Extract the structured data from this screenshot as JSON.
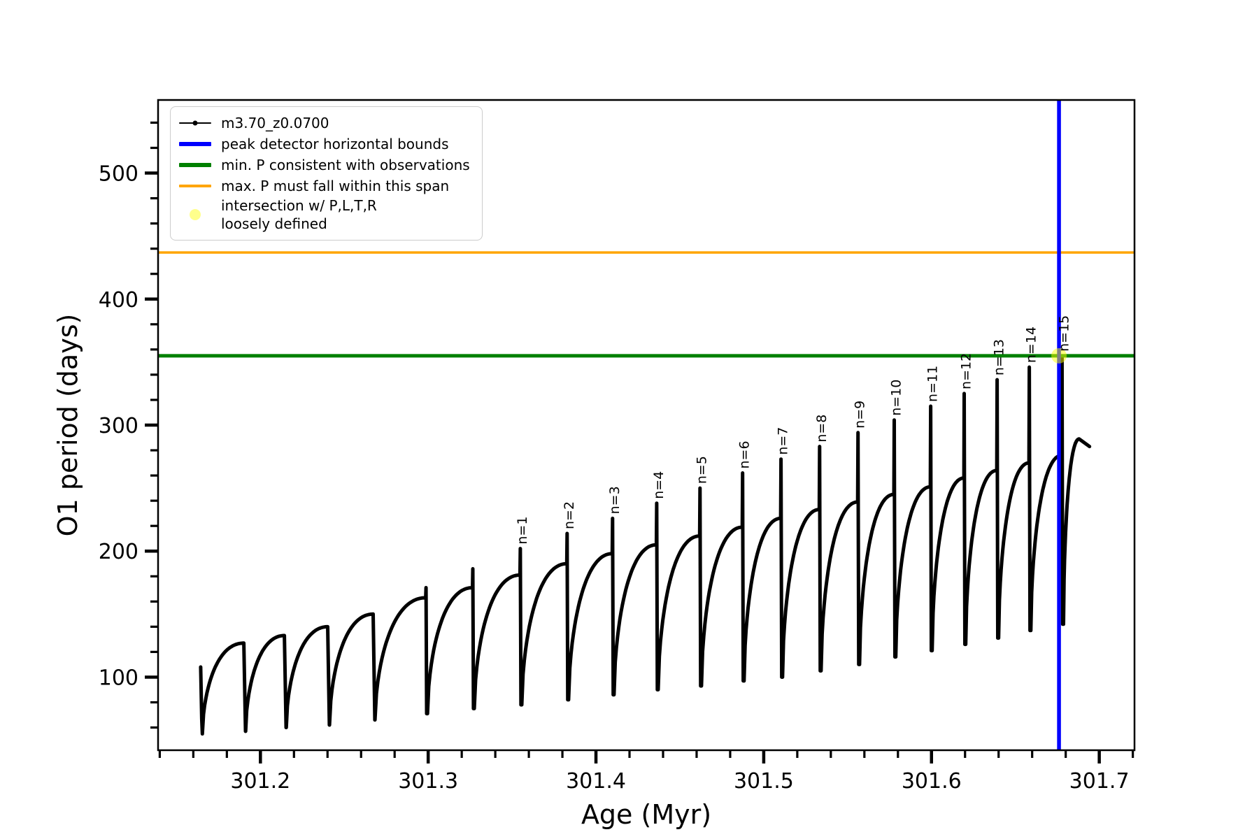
{
  "colors": {
    "series": "#000000",
    "peak_bounds": "#0000ff",
    "min_p": "#008000",
    "max_p": "#ffa500",
    "intersection": "#ffff00",
    "axis": "#000000"
  },
  "legend": {
    "items": [
      {
        "type": "line-marker",
        "color": "#000000",
        "label": "m3.70_z0.0700"
      },
      {
        "type": "line-thick",
        "color": "#0000ff",
        "label": "peak detector horizontal bounds"
      },
      {
        "type": "line-thick",
        "color": "#008000",
        "label": "min. P consistent with observations"
      },
      {
        "type": "line-med",
        "color": "#ffa500",
        "label": "max. P must fall within this span"
      },
      {
        "type": "marker",
        "color": "#ffff00",
        "label": "intersection w/ P,L,T,R\nloosely defined"
      }
    ]
  },
  "chart_data": {
    "type": "line",
    "title": "",
    "xlabel": "Age (Myr)",
    "ylabel": "O1 period (days)",
    "xlim": [
      301.139,
      301.721
    ],
    "ylim": [
      42,
      558
    ],
    "xticks": [
      301.2,
      301.3,
      301.4,
      301.5,
      301.6,
      301.7
    ],
    "xtick_labels": [
      "301.2",
      "301.3",
      "301.4",
      "301.5",
      "301.6",
      "301.7"
    ],
    "x_minor_step": 0.02,
    "yticks": [
      100,
      200,
      300,
      400,
      500
    ],
    "ytick_labels": [
      "100",
      "200",
      "300",
      "400",
      "500"
    ],
    "y_minor_step": 20,
    "grid": false,
    "legend_position": "upper-left",
    "series_label": "m3.70_z0.0700",
    "start_point": {
      "age": 301.165,
      "P": 108
    },
    "cycles": [
      {
        "start": 301.165,
        "end": 301.1908,
        "min": 55,
        "shoulder": 127,
        "needle": null,
        "label": null
      },
      {
        "start": 301.1908,
        "end": 301.215,
        "min": 57,
        "shoulder": 133,
        "needle": null,
        "label": null
      },
      {
        "start": 301.215,
        "end": 301.2408,
        "min": 60,
        "shoulder": 140,
        "needle": null,
        "label": null
      },
      {
        "start": 301.2408,
        "end": 301.2679,
        "min": 62,
        "shoulder": 150,
        "needle": null,
        "label": null
      },
      {
        "start": 301.2679,
        "end": 301.2992,
        "min": 66,
        "shoulder": 163,
        "needle": 171,
        "label": null
      },
      {
        "start": 301.2992,
        "end": 301.3271,
        "min": 71,
        "shoulder": 171,
        "needle": 186,
        "label": null
      },
      {
        "start": 301.3271,
        "end": 301.3554,
        "min": 75,
        "shoulder": 181,
        "needle": 202,
        "label": "n=1"
      },
      {
        "start": 301.3554,
        "end": 301.3833,
        "min": 78,
        "shoulder": 190,
        "needle": 214,
        "label": "n=2"
      },
      {
        "start": 301.3833,
        "end": 301.4104,
        "min": 82,
        "shoulder": 198,
        "needle": 226,
        "label": "n=3"
      },
      {
        "start": 301.4104,
        "end": 301.4367,
        "min": 86,
        "shoulder": 205,
        "needle": 238,
        "label": "n=4"
      },
      {
        "start": 301.4367,
        "end": 301.4625,
        "min": 90,
        "shoulder": 212,
        "needle": 250,
        "label": "n=5"
      },
      {
        "start": 301.4625,
        "end": 301.4879,
        "min": 93,
        "shoulder": 219,
        "needle": 262,
        "label": "n=6"
      },
      {
        "start": 301.4879,
        "end": 301.5108,
        "min": 97,
        "shoulder": 226,
        "needle": 273,
        "label": "n=7"
      },
      {
        "start": 301.5108,
        "end": 301.5338,
        "min": 100,
        "shoulder": 233,
        "needle": 283,
        "label": "n=8"
      },
      {
        "start": 301.5338,
        "end": 301.5567,
        "min": 105,
        "shoulder": 239,
        "needle": 294,
        "label": "n=9"
      },
      {
        "start": 301.5567,
        "end": 301.5783,
        "min": 110,
        "shoulder": 245,
        "needle": 304,
        "label": "n=10"
      },
      {
        "start": 301.5783,
        "end": 301.6,
        "min": 116,
        "shoulder": 251,
        "needle": 315,
        "label": "n=11"
      },
      {
        "start": 301.6,
        "end": 301.62,
        "min": 121,
        "shoulder": 258,
        "needle": 325,
        "label": "n=12"
      },
      {
        "start": 301.62,
        "end": 301.6396,
        "min": 126,
        "shoulder": 264,
        "needle": 336,
        "label": "n=13"
      },
      {
        "start": 301.6396,
        "end": 301.6588,
        "min": 131,
        "shoulder": 270,
        "needle": 346,
        "label": "n=14"
      },
      {
        "start": 301.6588,
        "end": 301.6783,
        "min": 137,
        "shoulder": 276,
        "needle": 355,
        "label": "n=15"
      }
    ],
    "final_segment": {
      "start": 301.6783,
      "min": 142,
      "peak_age": 301.688,
      "peak_P": 289,
      "end_age": 301.6942,
      "end_P": 283
    },
    "hlines": [
      {
        "name": "min-p-line",
        "value": 355,
        "color": "#008000",
        "width": 5
      },
      {
        "name": "max-p-line",
        "value": 437,
        "color": "#ffa500",
        "width": 3.5
      }
    ],
    "vlines": [
      {
        "name": "peak-bounds-line",
        "value": 301.676,
        "color": "#0000ff",
        "width": 5.5
      }
    ],
    "intersection_marker": {
      "age": 301.676,
      "P": 355,
      "color": "#ffff00",
      "opacity": 0.5,
      "radius": 11
    }
  }
}
